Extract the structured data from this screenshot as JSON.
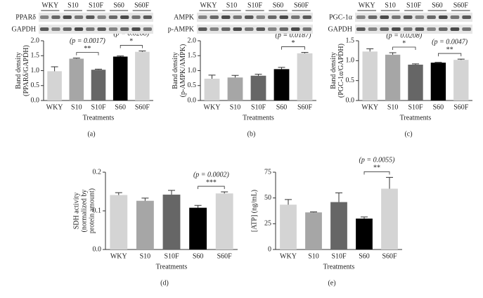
{
  "chart_data": [
    {
      "type": "bar",
      "panel": "(a)",
      "ylabel": [
        "Band density",
        "(PPARδ/GAPDH)"
      ],
      "xlabel": "Treatments",
      "categories": [
        "WKY",
        "S10",
        "S10F",
        "S60",
        "S60F"
      ],
      "values": [
        0.98,
        1.4,
        1.03,
        1.47,
        1.63
      ],
      "errors": [
        0.15,
        0.02,
        0.02,
        0.02,
        0.03
      ],
      "colors": [
        "#d4d4d4",
        "#a6a6a6",
        "#666666",
        "#000000",
        "#d4d4d4"
      ],
      "ylim": [
        0,
        2
      ],
      "yticks": [
        {
          "value": 0,
          "label": "0.0"
        },
        {
          "value": 0.5,
          "label": "0.5"
        },
        {
          "value": 1,
          "label": "1.0"
        },
        {
          "value": 1.5,
          "label": "1.5"
        },
        {
          "value": 2,
          "label": "2.0"
        }
      ],
      "comparisons": [
        {
          "between": [
            "S10",
            "S10F"
          ],
          "p": "(p = 0.0017)",
          "stars": "**"
        },
        {
          "between": [
            "S60",
            "S60F"
          ],
          "p": "(p = 0.0208)",
          "stars": "*"
        }
      ],
      "blot": {
        "lanes": [
          "WKY",
          "S10",
          "S10F",
          "S60",
          "S60F"
        ],
        "rows": [
          "PPARδ",
          "GAPDH"
        ]
      }
    },
    {
      "type": "bar",
      "panel": "(b)",
      "ylabel": [
        "Band density",
        "(p-AMPK/AMPK)"
      ],
      "xlabel": "Treatments",
      "categories": [
        "WKY",
        "S10",
        "S10F",
        "S60",
        "S60F"
      ],
      "values": [
        0.73,
        0.77,
        0.83,
        1.05,
        1.58
      ],
      "errors": [
        0.12,
        0.07,
        0.05,
        0.06,
        0.03
      ],
      "colors": [
        "#d4d4d4",
        "#a6a6a6",
        "#666666",
        "#000000",
        "#d4d4d4"
      ],
      "ylim": [
        0,
        2
      ],
      "yticks": [
        {
          "value": 0,
          "label": "0.0"
        },
        {
          "value": 0.5,
          "label": "0.5"
        },
        {
          "value": 1,
          "label": "1.0"
        },
        {
          "value": 1.5,
          "label": "1.5"
        },
        {
          "value": 2,
          "label": "2.0"
        }
      ],
      "comparisons": [
        {
          "between": [
            "S60",
            "S60F"
          ],
          "p": "(p = 0.0187)",
          "stars": "*"
        }
      ],
      "blot": {
        "lanes": [
          "WKY",
          "S10",
          "S10F",
          "S60",
          "S60F"
        ],
        "rows": [
          "AMPK",
          "p-AMPK"
        ]
      }
    },
    {
      "type": "bar",
      "panel": "(c)",
      "ylabel": [
        "Band density",
        "(PGC-1α/GAPDH)"
      ],
      "xlabel": "Treatments",
      "categories": [
        "WKY",
        "S10",
        "S10F",
        "S60",
        "S60F"
      ],
      "values": [
        1.23,
        1.15,
        0.9,
        0.95,
        1.02
      ],
      "errors": [
        0.07,
        0.05,
        0.02,
        0.01,
        0.02
      ],
      "colors": [
        "#d4d4d4",
        "#a6a6a6",
        "#666666",
        "#000000",
        "#d4d4d4"
      ],
      "ylim": [
        0,
        1.5
      ],
      "yticks": [
        {
          "value": 0,
          "label": "0.0"
        },
        {
          "value": 0.5,
          "label": "0.5"
        },
        {
          "value": 1,
          "label": "1.0"
        },
        {
          "value": 1.5,
          "label": "1.5"
        }
      ],
      "comparisons": [
        {
          "between": [
            "S10",
            "S10F"
          ],
          "p": "(p = 0.0208)",
          "stars": "*"
        },
        {
          "between": [
            "S60",
            "S60F"
          ],
          "p": "(p = 0.0047)",
          "stars": "**"
        }
      ],
      "blot": {
        "lanes": [
          "WKY",
          "S10",
          "S10F",
          "S60",
          "S60F"
        ],
        "rows": [
          "PGC-1α",
          "GAPDH"
        ]
      }
    },
    {
      "type": "bar",
      "panel": "(d)",
      "ylabel": [
        "SDH activity",
        "(normalized by",
        "protein amount)"
      ],
      "xlabel": "Treatments",
      "categories": [
        "WKY",
        "S10",
        "S10F",
        "S60",
        "S60F"
      ],
      "values": [
        0.141,
        0.126,
        0.142,
        0.108,
        0.145
      ],
      "errors": [
        0.006,
        0.007,
        0.011,
        0.006,
        0.004
      ],
      "colors": [
        "#d4d4d4",
        "#a6a6a6",
        "#666666",
        "#000000",
        "#d4d4d4"
      ],
      "ylim": [
        0,
        0.2
      ],
      "yticks": [
        {
          "value": 0,
          "label": "0.0"
        },
        0.1,
        0.2
      ],
      "comparisons": [
        {
          "between": [
            "S60",
            "S60F"
          ],
          "p": "(p = 0.0002)",
          "stars": "***"
        }
      ]
    },
    {
      "type": "bar",
      "panel": "(e)",
      "ylabel": [
        "[ATP] (ng/mL)"
      ],
      "xlabel": "Treatments",
      "categories": [
        "WKY",
        "S10",
        "S10F",
        "S60",
        "S60F"
      ],
      "values": [
        43.5,
        36,
        46,
        30,
        59
      ],
      "errors": [
        5,
        0.5,
        9,
        1.5,
        11
      ],
      "colors": [
        "#d4d4d4",
        "#a6a6a6",
        "#666666",
        "#000000",
        "#d4d4d4"
      ],
      "ylim": [
        0,
        75
      ],
      "yticks": [
        0,
        25,
        50,
        75
      ],
      "comparisons": [
        {
          "between": [
            "S60",
            "S60F"
          ],
          "p": "(p = 0.0055)",
          "stars": "**"
        }
      ]
    }
  ]
}
